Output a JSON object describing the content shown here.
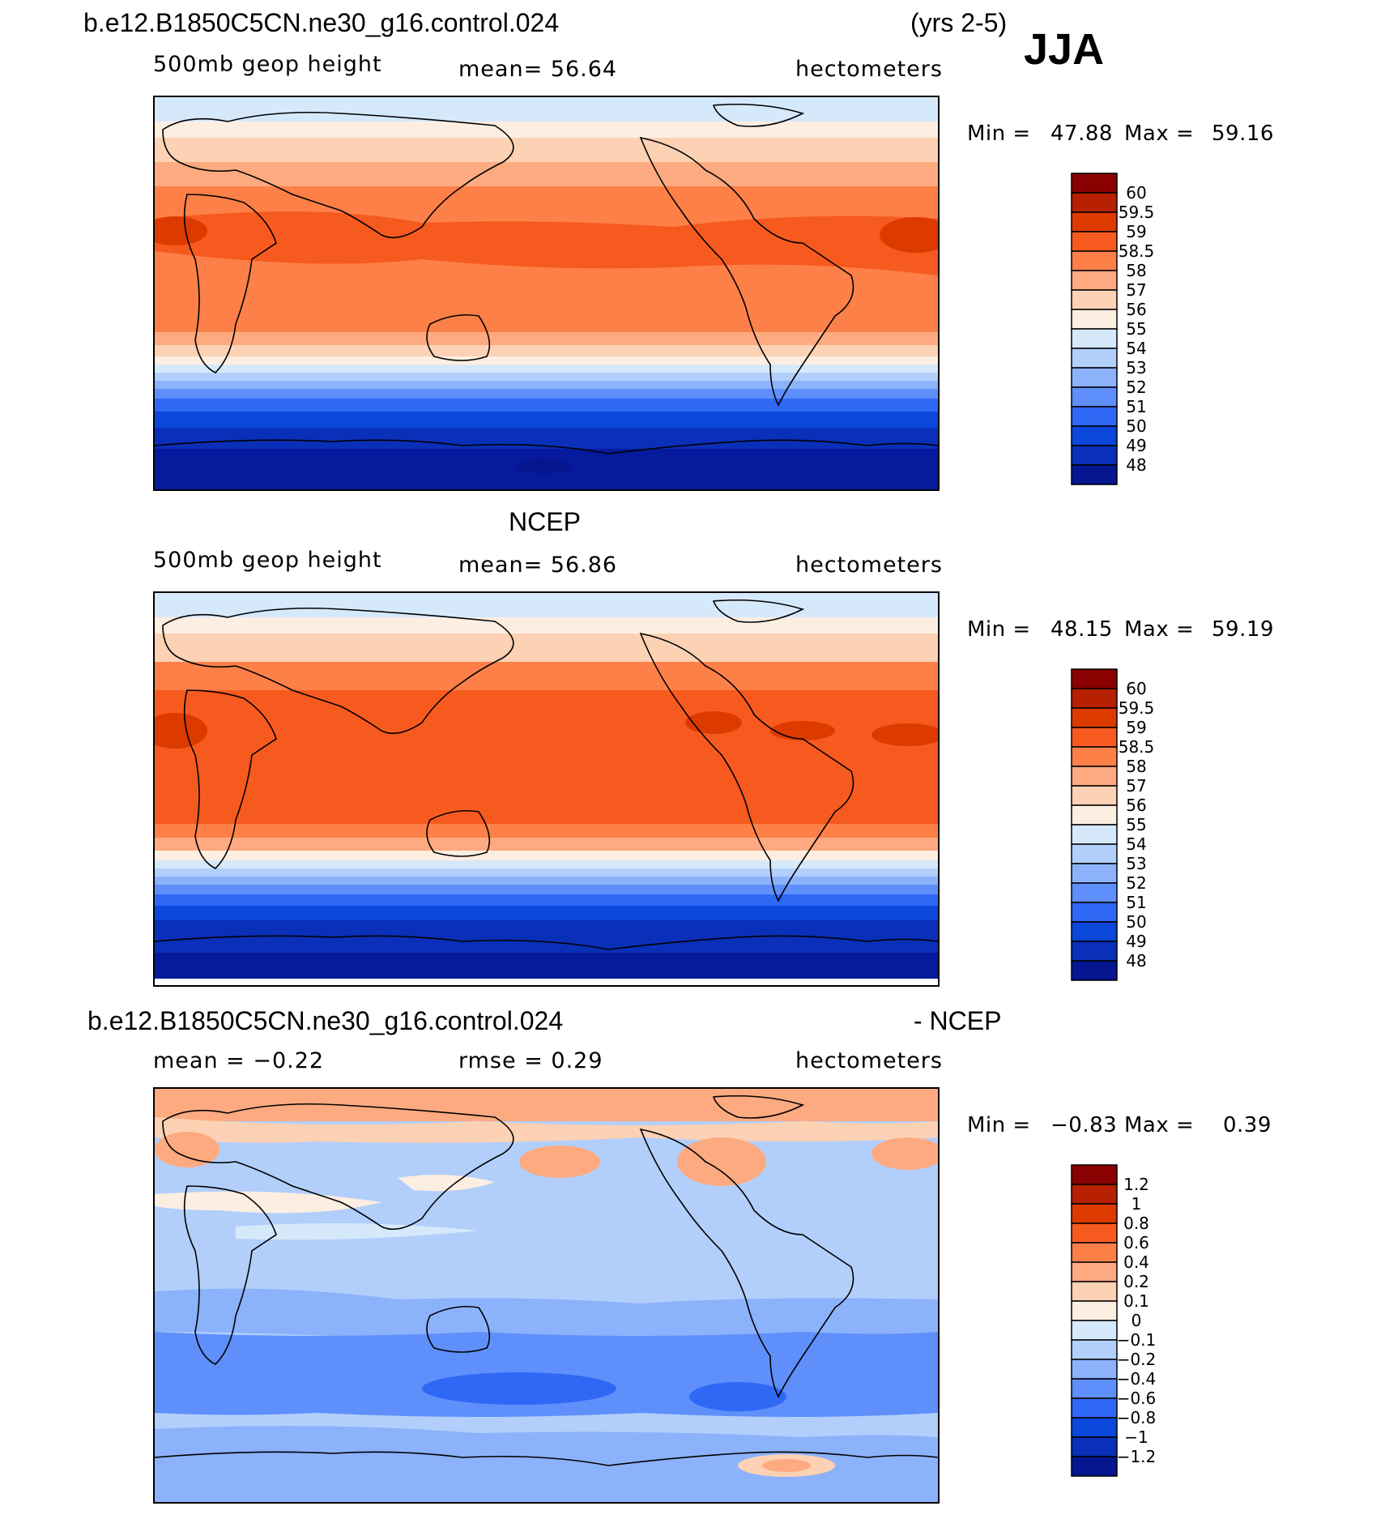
{
  "header": {
    "case_name": "b.e12.B1850C5CN.ne30_g16.control.024",
    "years": "(yrs 2-5)",
    "season": "JJA"
  },
  "panels": [
    {
      "id": "model",
      "title": "",
      "left_label": "500mb geop height",
      "center_label": "mean=   56.64",
      "units": "hectometers",
      "min_label": "Min =",
      "min_value": "47.88",
      "max_label": "Max =",
      "max_value": "59.16",
      "colorbar": {
        "labels": [
          "60",
          "59.5",
          "59",
          "58.5",
          "58",
          "57",
          "56",
          "55",
          "54",
          "53",
          "52",
          "51",
          "50",
          "49",
          "48"
        ],
        "colors": [
          "#8b0000",
          "#b72000",
          "#dd3a00",
          "#f75a1e",
          "#fd8048",
          "#fdaa80",
          "#fdd1b4",
          "#fdeee2",
          "#d6e9fb",
          "#b2cffb",
          "#8cb2fb",
          "#5e8ffb",
          "#2f68f5",
          "#0a47da",
          "#0a2fb8",
          "#061590"
        ]
      }
    },
    {
      "id": "obs",
      "title": "NCEP",
      "left_label": "500mb geop height",
      "center_label": "mean=   56.86",
      "units": "hectometers",
      "min_label": "Min =",
      "min_value": "48.15",
      "max_label": "Max =",
      "max_value": "59.19",
      "colorbar": {
        "labels": [
          "60",
          "59.5",
          "59",
          "58.5",
          "58",
          "57",
          "56",
          "55",
          "54",
          "53",
          "52",
          "51",
          "50",
          "49",
          "48"
        ],
        "colors": [
          "#8b0000",
          "#b72000",
          "#dd3a00",
          "#f75a1e",
          "#fd8048",
          "#fdaa80",
          "#fdd1b4",
          "#fdeee2",
          "#d6e9fb",
          "#b2cffb",
          "#8cb2fb",
          "#5e8ffb",
          "#2f68f5",
          "#0a47da",
          "#0a2fb8",
          "#061590"
        ]
      }
    },
    {
      "id": "diff",
      "title_left": "b.e12.B1850C5CN.ne30_g16.control.024",
      "title_right": "- NCEP",
      "left_label": "mean =   −0.22",
      "center_label": "rmse =    0.29",
      "units": "hectometers",
      "min_label": "Min =",
      "min_value": "−0.83",
      "max_label": "Max =",
      "max_value": "0.39",
      "colorbar": {
        "labels": [
          "1.2",
          "1",
          "0.8",
          "0.6",
          "0.4",
          "0.2",
          "0.1",
          "0",
          "−0.1",
          "−0.2",
          "−0.4",
          "−0.6",
          "−0.8",
          "−1",
          "−1.2"
        ],
        "colors": [
          "#8b0000",
          "#b72000",
          "#dd3a00",
          "#f75a1e",
          "#fd8048",
          "#fdaa80",
          "#fdd1b4",
          "#fdeee2",
          "#d6e9fb",
          "#b2cffb",
          "#8cb2fb",
          "#5e8ffb",
          "#2f68f5",
          "#0a47da",
          "#0a2fb8",
          "#061590"
        ]
      }
    }
  ]
}
